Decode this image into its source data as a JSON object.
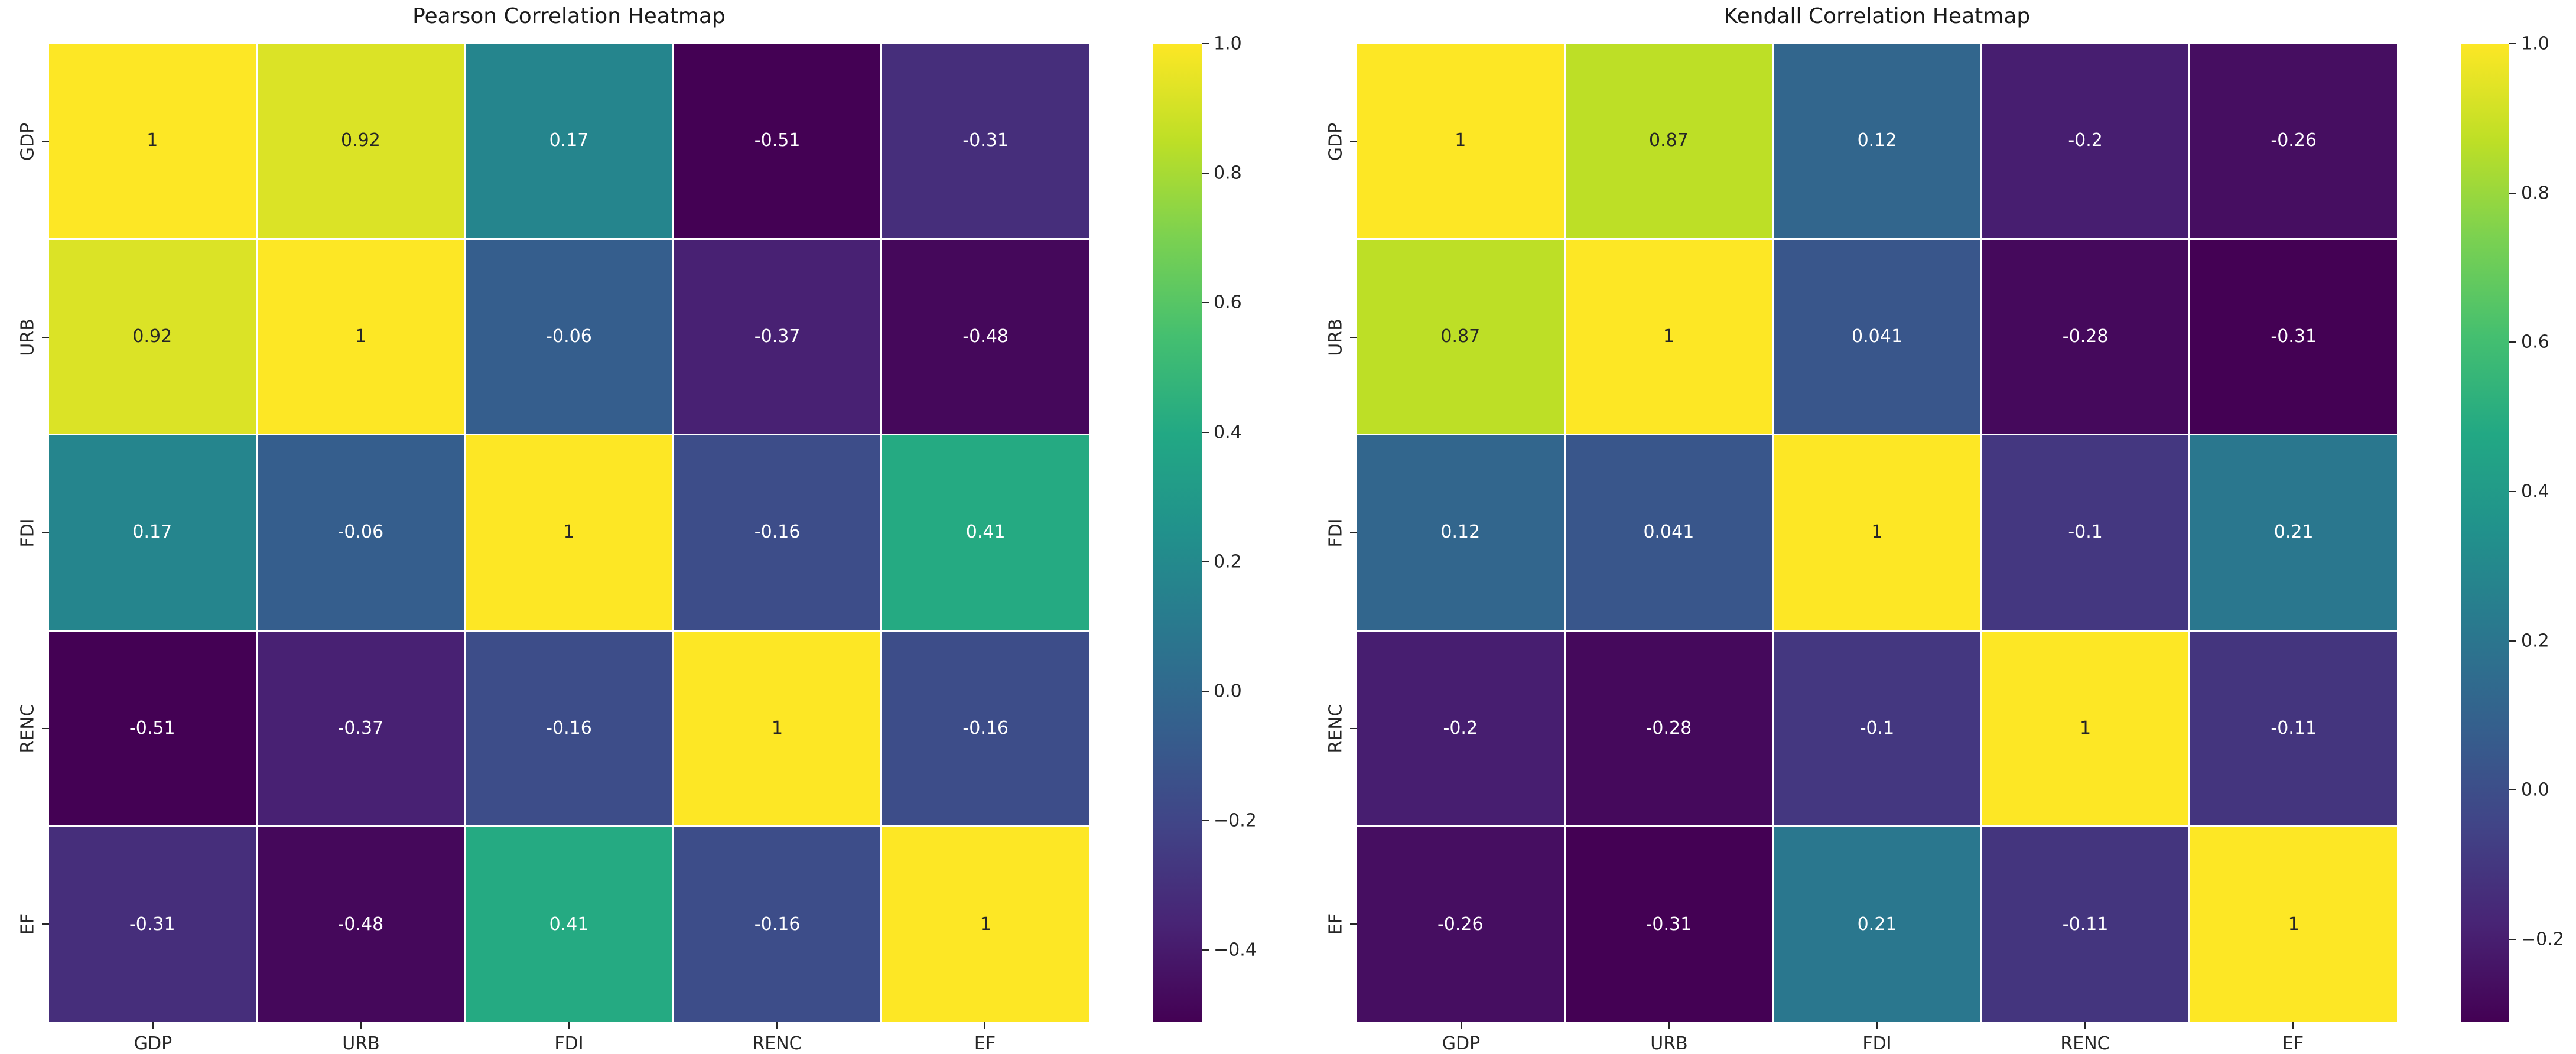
{
  "chart_data": [
    {
      "type": "heatmap",
      "title": "Pearson Correlation Heatmap",
      "x_labels": [
        "GDP",
        "URB",
        "FDI",
        "RENC",
        "EF"
      ],
      "y_labels": [
        "GDP",
        "URB",
        "FDI",
        "RENC",
        "EF"
      ],
      "matrix": [
        [
          1,
          0.92,
          0.17,
          -0.51,
          -0.31
        ],
        [
          0.92,
          1,
          -0.06,
          -0.37,
          -0.48
        ],
        [
          0.17,
          -0.06,
          1,
          -0.16,
          0.41
        ],
        [
          -0.51,
          -0.37,
          -0.16,
          1,
          -0.16
        ],
        [
          -0.31,
          -0.48,
          0.41,
          -0.16,
          1
        ]
      ],
      "annotations": [
        [
          "1",
          "0.92",
          "0.17",
          "-0.51",
          "-0.31"
        ],
        [
          "0.92",
          "1",
          "-0.06",
          "-0.37",
          "-0.48"
        ],
        [
          "0.17",
          "-0.06",
          "1",
          "-0.16",
          "0.41"
        ],
        [
          "-0.51",
          "-0.37",
          "-0.16",
          "1",
          "-0.16"
        ],
        [
          "-0.31",
          "-0.48",
          "0.41",
          "-0.16",
          "1"
        ]
      ],
      "colormap": "viridis",
      "color_range": [
        -0.51,
        1.0
      ],
      "colorbar_tick_values": [
        1.0,
        0.8,
        0.6,
        0.4,
        0.2,
        0.0,
        -0.2,
        -0.4
      ],
      "colorbar_tick_labels": [
        "1.0",
        "0.8",
        "0.6",
        "0.4",
        "0.2",
        "0.0",
        "−0.2",
        "−0.4"
      ],
      "grid": false,
      "legend_position": "colorbar-right"
    },
    {
      "type": "heatmap",
      "title": "Kendall Correlation Heatmap",
      "x_labels": [
        "GDP",
        "URB",
        "FDI",
        "RENC",
        "EF"
      ],
      "y_labels": [
        "GDP",
        "URB",
        "FDI",
        "RENC",
        "EF"
      ],
      "matrix": [
        [
          1,
          0.87,
          0.12,
          -0.2,
          -0.26
        ],
        [
          0.87,
          1,
          0.041,
          -0.28,
          -0.31
        ],
        [
          0.12,
          0.041,
          1,
          -0.1,
          0.21
        ],
        [
          -0.2,
          -0.28,
          -0.1,
          1,
          -0.11
        ],
        [
          -0.26,
          -0.31,
          0.21,
          -0.11,
          1
        ]
      ],
      "annotations": [
        [
          "1",
          "0.87",
          "0.12",
          "-0.2",
          "-0.26"
        ],
        [
          "0.87",
          "1",
          "0.041",
          "-0.28",
          "-0.31"
        ],
        [
          "0.12",
          "0.041",
          "1",
          "-0.1",
          "0.21"
        ],
        [
          "-0.2",
          "-0.28",
          "-0.1",
          "1",
          "-0.11"
        ],
        [
          "-0.26",
          "-0.31",
          "0.21",
          "-0.11",
          "1"
        ]
      ],
      "colormap": "viridis",
      "color_range": [
        -0.31,
        1.0
      ],
      "colorbar_tick_values": [
        1.0,
        0.8,
        0.6,
        0.4,
        0.2,
        0.0,
        -0.2
      ],
      "colorbar_tick_labels": [
        "1.0",
        "0.8",
        "0.6",
        "0.4",
        "0.2",
        "0.0",
        "−0.2"
      ],
      "grid": false,
      "legend_position": "colorbar-right"
    }
  ],
  "colors": {
    "annotation_dark": "#262626",
    "annotation_light": "#ffffff",
    "tick_color": "#262626",
    "background": "#ffffff"
  }
}
